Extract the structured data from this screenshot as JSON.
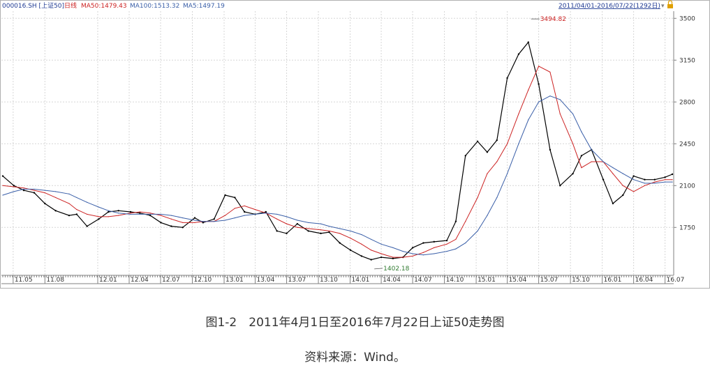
{
  "header": {
    "security": "000016.SH [上证50]",
    "period": "日线",
    "ma50": "MA50:1479.43",
    "ma100": "MA100:1513.32",
    "ma5": "MA5:1497.19",
    "date_range": "2011/04/01-2016/07/22(1292日)",
    "dropdown_glyph": "▾"
  },
  "colors": {
    "background": "#ffffff",
    "price": "#000000",
    "ma50": "#cc2222",
    "ma100": "#3a5fa8",
    "ma5": "#3a5fa8",
    "header_text": "#1f3a93",
    "grid": "#d6d6d6",
    "axis": "#808080",
    "icon": "#e0a000"
  },
  "chart_data": {
    "type": "line",
    "title": "",
    "xlabel": "",
    "ylabel": "",
    "x_ticks": [
      "11.05",
      "11.08",
      "12.01",
      "12.04",
      "12.07",
      "12.10",
      "13.01",
      "13.04",
      "13.07",
      "13.10",
      "14.01",
      "14.04",
      "14.07",
      "14.10",
      "15.01",
      "15.04",
      "15.07",
      "15.10",
      "16.01",
      "16.04",
      "16.07"
    ],
    "y_ticks": [
      1750,
      2100,
      2450,
      2800,
      3150,
      3500
    ],
    "ylim": [
      1355,
      3560
    ],
    "grid": true,
    "legend": "top-left",
    "annotations": [
      {
        "label": "3494.82",
        "x": "2015-06-09",
        "y": 3494.82
      },
      {
        "label": "1402.18",
        "x": "2014-03-12",
        "y": 1402.18
      }
    ],
    "series": [
      {
        "name": "000016.SH",
        "x": [
          "2011-04-01",
          "2011-05-03",
          "2011-06-01",
          "2011-07-01",
          "2011-08-01",
          "2011-09-01",
          "2011-10-10",
          "2011-11-01",
          "2011-12-01",
          "2012-01-04",
          "2012-02-01",
          "2012-03-01",
          "2012-04-05",
          "2012-05-02",
          "2012-06-01",
          "2012-07-02",
          "2012-08-01",
          "2012-09-03",
          "2012-10-08",
          "2012-11-01",
          "2012-12-03",
          "2013-01-04",
          "2013-02-01",
          "2013-03-01",
          "2013-04-01",
          "2013-05-02",
          "2013-06-03",
          "2013-07-01",
          "2013-08-01",
          "2013-09-02",
          "2013-10-08",
          "2013-11-01",
          "2013-12-02",
          "2014-01-02",
          "2014-02-03",
          "2014-03-03",
          "2014-04-01",
          "2014-05-05",
          "2014-06-03",
          "2014-07-01",
          "2014-08-01",
          "2014-09-01",
          "2014-10-08",
          "2014-11-03",
          "2014-12-01",
          "2015-01-05",
          "2015-02-02",
          "2015-03-02",
          "2015-04-01",
          "2015-05-04",
          "2015-06-01",
          "2015-07-01",
          "2015-08-03",
          "2015-09-01",
          "2015-10-08",
          "2015-11-02",
          "2015-12-01",
          "2016-01-04",
          "2016-02-01",
          "2016-03-01",
          "2016-04-01",
          "2016-05-03",
          "2016-06-01",
          "2016-07-01",
          "2016-07-22"
        ],
        "values": [
          2180,
          2100,
          2060,
          2040,
          1950,
          1890,
          1850,
          1860,
          1760,
          1820,
          1880,
          1890,
          1880,
          1870,
          1850,
          1790,
          1760,
          1750,
          1830,
          1790,
          1820,
          2020,
          2000,
          1880,
          1860,
          1880,
          1720,
          1700,
          1780,
          1720,
          1700,
          1710,
          1620,
          1560,
          1510,
          1480,
          1500,
          1490,
          1500,
          1580,
          1620,
          1630,
          1640,
          1800,
          2350,
          2470,
          2380,
          2480,
          3000,
          3200,
          3300,
          2950,
          2400,
          2100,
          2200,
          2350,
          2400,
          2150,
          1950,
          2020,
          2180,
          2150,
          2150,
          2170,
          2195
        ]
      },
      {
        "name": "MA50",
        "values": [
          2100,
          2090,
          2080,
          2060,
          2040,
          2000,
          1950,
          1900,
          1860,
          1840,
          1840,
          1850,
          1870,
          1880,
          1870,
          1850,
          1820,
          1790,
          1790,
          1800,
          1800,
          1850,
          1910,
          1930,
          1900,
          1870,
          1820,
          1780,
          1750,
          1740,
          1730,
          1720,
          1700,
          1660,
          1610,
          1560,
          1530,
          1500,
          1500,
          1510,
          1540,
          1580,
          1610,
          1650,
          1800,
          2000,
          2200,
          2300,
          2450,
          2700,
          2900,
          3100,
          3050,
          2700,
          2450,
          2250,
          2300,
          2300,
          2200,
          2100,
          2050,
          2100,
          2130,
          2150,
          2150
        ]
      },
      {
        "name": "MA100",
        "values": [
          2020,
          2050,
          2070,
          2070,
          2060,
          2050,
          2030,
          2000,
          1960,
          1920,
          1890,
          1870,
          1860,
          1860,
          1860,
          1860,
          1850,
          1830,
          1810,
          1800,
          1800,
          1810,
          1830,
          1850,
          1860,
          1870,
          1860,
          1840,
          1810,
          1790,
          1780,
          1760,
          1740,
          1720,
          1690,
          1650,
          1610,
          1580,
          1550,
          1530,
          1520,
          1530,
          1550,
          1570,
          1620,
          1720,
          1850,
          2000,
          2200,
          2450,
          2650,
          2800,
          2850,
          2820,
          2700,
          2550,
          2400,
          2300,
          2250,
          2200,
          2150,
          2120,
          2120,
          2130,
          2130
        ]
      }
    ]
  },
  "caption": {
    "figure": "图1-2　2011年4月1日至2016年7月22日上证50走势图",
    "source": "资料来源：Wind。"
  }
}
